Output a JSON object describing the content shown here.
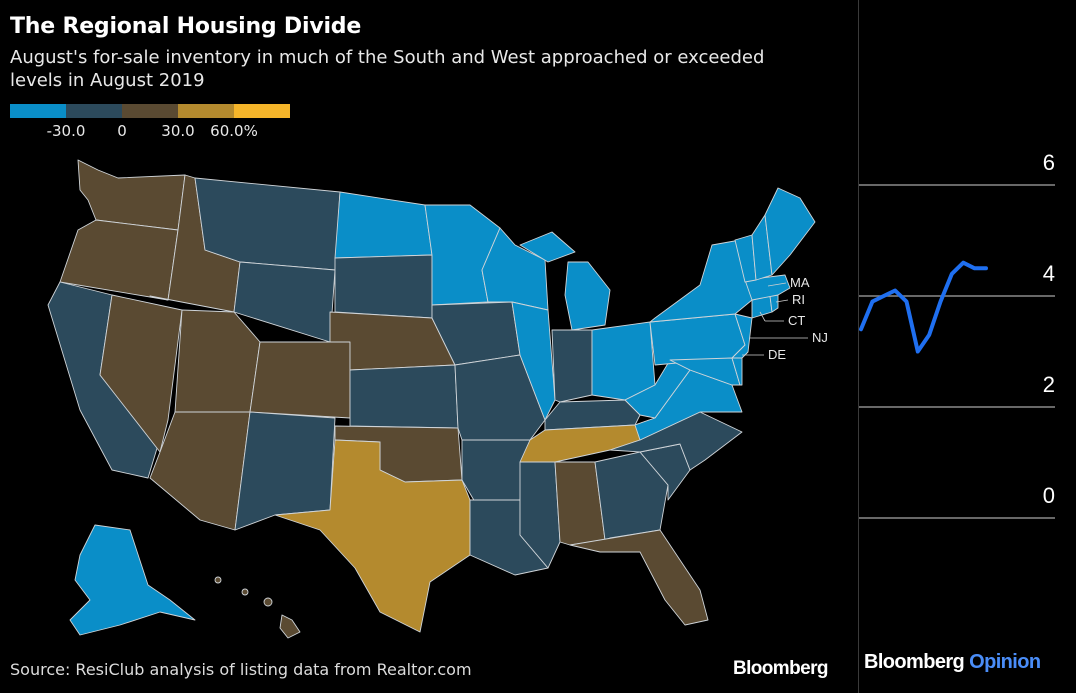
{
  "header": {
    "title": "The Regional Housing Divide",
    "subtitle": "August's for-sale inventory in much of the South and West approached or exceeded levels in August 2019"
  },
  "legend": {
    "colors": [
      "#0a8ec8",
      "#2c4a5c",
      "#5a4a32",
      "#b48a2e",
      "#f5b52a"
    ],
    "labels": [
      "-30.0",
      "0",
      "30.0",
      "60.0%"
    ]
  },
  "map_labels": {
    "ma": "MA",
    "ri": "RI",
    "ct": "CT",
    "nj": "NJ",
    "de": "DE"
  },
  "footer": {
    "source": "Source: ResiClub analysis of listing data from Realtor.com",
    "brand": "Bloomberg"
  },
  "side_panel": {
    "brand": "Bloomberg",
    "brand_suffix": "Opinion",
    "line_color": "#1f6ff0"
  },
  "chart_data": [
    {
      "type": "map",
      "title": "The Regional Housing Divide",
      "subtitle": "August's for-sale inventory in much of the South and West approached or exceeded levels in August 2019",
      "scale": {
        "breaks": [
          -30.0,
          0,
          30.0,
          60.0
        ],
        "unit": "%",
        "colors": [
          "#0a8ec8",
          "#2c4a5c",
          "#5a4a32",
          "#b48a2e",
          "#f5b52a"
        ]
      },
      "bins": {
        "below -30": [
          "ND",
          "MN",
          "WI",
          "MI",
          "IL",
          "OH",
          "PA",
          "NY",
          "VT",
          "NH",
          "ME",
          "MA",
          "RI",
          "CT",
          "NJ",
          "DE",
          "MD",
          "VA",
          "WV",
          "AK"
        ],
        "-30 to 0": [
          "CA",
          "MT",
          "WY",
          "SD",
          "IA",
          "KS",
          "MO",
          "NM",
          "AR",
          "LA",
          "MS",
          "IN",
          "KY",
          "NC",
          "SC",
          "GA"
        ],
        "0 to 30": [
          "WA",
          "OR",
          "ID",
          "NV",
          "UT",
          "AZ",
          "CO",
          "NE",
          "OK",
          "AL",
          "FL",
          "HI"
        ],
        "30 to 60": [
          "TX",
          "TN"
        ]
      }
    },
    {
      "type": "line",
      "yticks": [
        0,
        2,
        4,
        6
      ],
      "ylim": [
        0,
        6
      ],
      "series": [
        {
          "values": [
            3.4,
            3.9,
            4.0,
            4.1,
            3.9,
            3.0,
            3.3,
            3.9,
            4.4,
            4.6,
            4.5,
            4.5
          ]
        }
      ]
    }
  ]
}
